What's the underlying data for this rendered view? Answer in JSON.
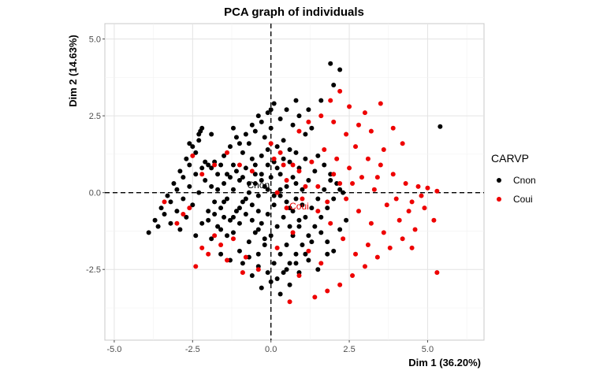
{
  "chart_data": {
    "type": "scatter",
    "title": "PCA graph of individuals",
    "xlabel": "Dim 1 (36.20%)",
    "ylabel": "Dim 2 (14.63%)",
    "xlim": [
      -5.3,
      6.8
    ],
    "ylim": [
      -4.8,
      5.5
    ],
    "x_ticks": [
      -5.0,
      -2.5,
      0.0,
      2.5,
      5.0
    ],
    "x_tick_labels": [
      "-5.0",
      "-2.5",
      "0.0",
      "2.5",
      "5.0"
    ],
    "y_ticks": [
      -2.5,
      0.0,
      2.5,
      5.0
    ],
    "y_tick_labels": [
      "-2.5",
      "0.0",
      "2.5",
      "5.0"
    ],
    "grid": true,
    "reference_lines": {
      "x": 0,
      "y": 0,
      "style": "dashed"
    },
    "legend": {
      "title": "CARVP",
      "position": "right"
    },
    "series": [
      {
        "name": "Cnon",
        "color": "#000000",
        "points": [
          [
            -3.9,
            -1.3
          ],
          [
            -3.7,
            -0.9
          ],
          [
            -3.5,
            -0.5
          ],
          [
            -3.3,
            -0.1
          ],
          [
            -3.1,
            0.3
          ],
          [
            -2.9,
            0.7
          ],
          [
            -2.7,
            1.1
          ],
          [
            -2.5,
            1.5
          ],
          [
            -2.3,
            1.9
          ],
          [
            -2.2,
            2.1
          ],
          [
            -3.6,
            -1.1
          ],
          [
            -3.4,
            -0.7
          ],
          [
            -3.2,
            -0.3
          ],
          [
            -3.0,
            0.1
          ],
          [
            -2.8,
            0.5
          ],
          [
            -2.6,
            0.9
          ],
          [
            -2.4,
            1.3
          ],
          [
            -2.3,
            1.7
          ],
          [
            -2.25,
            2.0
          ],
          [
            -2.6,
            1.6
          ],
          [
            -3.2,
            -1.0
          ],
          [
            -3.0,
            -0.6
          ],
          [
            -2.8,
            -0.2
          ],
          [
            -2.6,
            0.2
          ],
          [
            -2.4,
            0.6
          ],
          [
            -2.2,
            0.8
          ],
          [
            -2.0,
            0.9
          ],
          [
            -1.8,
            1.0
          ],
          [
            -1.6,
            0.9
          ],
          [
            -1.4,
            0.6
          ],
          [
            -2.9,
            -1.2
          ],
          [
            -2.7,
            -0.8
          ],
          [
            -2.5,
            -0.4
          ],
          [
            -2.3,
            0.0
          ],
          [
            -2.1,
            0.4
          ],
          [
            -1.9,
            0.2
          ],
          [
            -1.7,
            0.1
          ],
          [
            -1.5,
            0.3
          ],
          [
            -1.3,
            0.5
          ],
          [
            -1.1,
            0.7
          ],
          [
            -2.4,
            -1.4
          ],
          [
            -2.2,
            -1.0
          ],
          [
            -2.0,
            -0.6
          ],
          [
            -1.8,
            -0.3
          ],
          [
            -1.6,
            -0.5
          ],
          [
            -1.4,
            -0.2
          ],
          [
            -1.2,
            0.1
          ],
          [
            -1.0,
            0.4
          ],
          [
            -0.8,
            0.8
          ],
          [
            -0.6,
            1.1
          ],
          [
            -1.9,
            -1.5
          ],
          [
            -1.7,
            -1.1
          ],
          [
            -1.5,
            -0.8
          ],
          [
            -1.3,
            -0.9
          ],
          [
            -1.1,
            -0.6
          ],
          [
            -0.9,
            -0.3
          ],
          [
            -0.7,
            0.0
          ],
          [
            -0.5,
            0.3
          ],
          [
            -0.3,
            0.6
          ],
          [
            -0.1,
            0.9
          ],
          [
            -1.2,
            -1.3
          ],
          [
            -1.0,
            -1.0
          ],
          [
            -0.8,
            -0.7
          ],
          [
            -0.6,
            -0.4
          ],
          [
            -0.4,
            -0.1
          ],
          [
            -0.2,
            0.2
          ],
          [
            0.0,
            0.5
          ],
          [
            0.2,
            0.8
          ],
          [
            0.4,
            1.1
          ],
          [
            0.6,
            1.4
          ],
          [
            -0.7,
            -1.6
          ],
          [
            -0.5,
            -1.3
          ],
          [
            -0.3,
            -1.0
          ],
          [
            -0.1,
            -0.7
          ],
          [
            0.1,
            -0.4
          ],
          [
            0.3,
            -0.1
          ],
          [
            0.5,
            0.2
          ],
          [
            0.7,
            0.5
          ],
          [
            0.9,
            0.8
          ],
          [
            1.1,
            1.1
          ],
          [
            -0.4,
            -2.0
          ],
          [
            -0.2,
            -1.7
          ],
          [
            0.0,
            -1.4
          ],
          [
            0.2,
            -1.1
          ],
          [
            0.4,
            -0.8
          ],
          [
            0.6,
            -0.5
          ],
          [
            0.8,
            -0.2
          ],
          [
            1.0,
            0.1
          ],
          [
            1.2,
            0.4
          ],
          [
            1.4,
            0.7
          ],
          [
            0.1,
            -2.3
          ],
          [
            0.3,
            -2.0
          ],
          [
            0.5,
            -1.7
          ],
          [
            0.7,
            -1.4
          ],
          [
            0.9,
            -1.1
          ],
          [
            1.1,
            -0.8
          ],
          [
            1.3,
            -0.5
          ],
          [
            1.5,
            -0.2
          ],
          [
            1.7,
            0.1
          ],
          [
            1.9,
            0.4
          ],
          [
            0.4,
            -2.6
          ],
          [
            0.6,
            -2.3
          ],
          [
            0.8,
            -2.0
          ],
          [
            1.0,
            -1.7
          ],
          [
            1.2,
            -1.4
          ],
          [
            1.4,
            -1.1
          ],
          [
            1.6,
            -0.8
          ],
          [
            1.8,
            -0.5
          ],
          [
            2.0,
            -0.2
          ],
          [
            2.2,
            0.1
          ],
          [
            -0.5,
            2.0
          ],
          [
            -0.3,
            2.3
          ],
          [
            -0.1,
            2.6
          ],
          [
            0.1,
            2.9
          ],
          [
            0.3,
            2.4
          ],
          [
            0.5,
            2.7
          ],
          [
            0.7,
            2.2
          ],
          [
            0.9,
            2.5
          ],
          [
            1.1,
            1.9
          ],
          [
            1.3,
            2.1
          ],
          [
            -1.0,
            1.6
          ],
          [
            -0.8,
            1.9
          ],
          [
            -0.6,
            2.2
          ],
          [
            -0.4,
            2.5
          ],
          [
            -0.2,
            1.8
          ],
          [
            0.0,
            2.1
          ],
          [
            0.2,
            1.5
          ],
          [
            0.4,
            1.7
          ],
          [
            0.6,
            1.0
          ],
          [
            0.8,
            1.3
          ],
          [
            -1.5,
            1.2
          ],
          [
            -1.3,
            1.5
          ],
          [
            -1.1,
            1.8
          ],
          [
            -0.9,
            1.3
          ],
          [
            -0.7,
            1.6
          ],
          [
            -0.5,
            0.9
          ],
          [
            -0.3,
            1.2
          ],
          [
            -0.1,
            1.4
          ],
          [
            0.1,
            1.0
          ],
          [
            0.3,
            0.6
          ],
          [
            -0.9,
            -2.3
          ],
          [
            -0.6,
            -2.7
          ],
          [
            -0.3,
            -3.1
          ],
          [
            0.0,
            -2.9
          ],
          [
            0.3,
            -3.3
          ],
          [
            0.6,
            -3.0
          ],
          [
            0.9,
            -2.6
          ],
          [
            1.2,
            -2.2
          ],
          [
            1.5,
            -2.5
          ],
          [
            1.8,
            -2.0
          ],
          [
            -1.6,
            -2.0
          ],
          [
            -1.3,
            -2.2
          ],
          [
            -1.0,
            -1.9
          ],
          [
            -0.7,
            -2.1
          ],
          [
            -0.4,
            -2.4
          ],
          [
            -0.1,
            -2.6
          ],
          [
            0.2,
            -2.8
          ],
          [
            0.5,
            -2.5
          ],
          [
            0.8,
            -2.3
          ],
          [
            1.1,
            -2.0
          ],
          [
            1.5,
            1.2
          ],
          [
            1.7,
            0.9
          ],
          [
            1.9,
            0.6
          ],
          [
            2.1,
            0.3
          ],
          [
            2.3,
            0.0
          ],
          [
            1.6,
            -1.3
          ],
          [
            1.8,
            -1.6
          ],
          [
            2.0,
            -1.9
          ],
          [
            2.2,
            -1.2
          ],
          [
            2.4,
            -0.9
          ],
          [
            -2.0,
            -0.9
          ],
          [
            -1.8,
            -0.7
          ],
          [
            -1.6,
            -1.2
          ],
          [
            -1.4,
            -1.4
          ],
          [
            -1.2,
            -0.8
          ],
          [
            -1.0,
            -0.5
          ],
          [
            -0.8,
            -0.2
          ],
          [
            -0.6,
            -0.9
          ],
          [
            -0.4,
            -1.2
          ],
          [
            -0.2,
            -1.5
          ],
          [
            -0.9,
            0.5
          ],
          [
            -0.7,
            0.3
          ],
          [
            -0.5,
            0.6
          ],
          [
            -0.3,
            0.4
          ],
          [
            -0.1,
            0.1
          ],
          [
            0.1,
            -0.1
          ],
          [
            0.3,
            0.1
          ],
          [
            0.5,
            -0.3
          ],
          [
            0.7,
            -0.6
          ],
          [
            0.9,
            -0.9
          ],
          [
            1.9,
            4.2
          ],
          [
            2.2,
            4.0
          ],
          [
            2.0,
            3.5
          ],
          [
            1.6,
            3.0
          ],
          [
            1.2,
            2.7
          ],
          [
            5.4,
            2.15
          ],
          [
            0.0,
            2.7
          ],
          [
            0.8,
            3.0
          ],
          [
            -1.2,
            2.1
          ],
          [
            -1.9,
            1.9
          ],
          [
            -1.5,
            -0.3
          ],
          [
            -1.7,
            0.6
          ],
          [
            -1.9,
            0.8
          ],
          [
            -2.1,
            1.0
          ],
          [
            -1.2,
            0.9
          ],
          [
            -0.4,
            -0.6
          ],
          [
            0.6,
            -1.1
          ],
          [
            1.3,
            -1.6
          ],
          [
            1.0,
            -0.4
          ],
          [
            0.8,
            0.3
          ]
        ]
      },
      {
        "name": "Coui",
        "color": "#ee0000",
        "points": [
          [
            2.2,
            3.3
          ],
          [
            1.9,
            3.0
          ],
          [
            2.5,
            2.8
          ],
          [
            3.0,
            2.6
          ],
          [
            3.5,
            2.9
          ],
          [
            2.8,
            2.2
          ],
          [
            3.2,
            2.0
          ],
          [
            3.9,
            2.1
          ],
          [
            4.2,
            1.6
          ],
          [
            3.6,
            1.4
          ],
          [
            2.4,
            1.9
          ],
          [
            2.0,
            2.3
          ],
          [
            1.6,
            2.5
          ],
          [
            1.2,
            2.3
          ],
          [
            0.9,
            2.0
          ],
          [
            2.7,
            1.5
          ],
          [
            3.1,
            1.1
          ],
          [
            3.5,
            0.9
          ],
          [
            3.9,
            0.6
          ],
          [
            4.3,
            0.3
          ],
          [
            4.7,
            0.2
          ],
          [
            5.0,
            0.15
          ],
          [
            5.3,
            0.05
          ],
          [
            4.5,
            -0.3
          ],
          [
            4.9,
            -0.5
          ],
          [
            5.2,
            -0.9
          ],
          [
            4.6,
            -1.2
          ],
          [
            4.2,
            -1.5
          ],
          [
            3.8,
            -1.8
          ],
          [
            3.4,
            -2.1
          ],
          [
            3.0,
            -2.4
          ],
          [
            2.6,
            -2.7
          ],
          [
            2.2,
            -3.0
          ],
          [
            1.8,
            -3.2
          ],
          [
            1.4,
            -3.4
          ],
          [
            0.6,
            -3.55
          ],
          [
            5.3,
            -2.6
          ],
          [
            4.5,
            -1.8
          ],
          [
            4.1,
            -0.9
          ],
          [
            3.7,
            -0.4
          ],
          [
            3.3,
            0.1
          ],
          [
            2.9,
            0.5
          ],
          [
            2.5,
            0.8
          ],
          [
            2.1,
            1.1
          ],
          [
            1.7,
            1.4
          ],
          [
            1.3,
            1.0
          ],
          [
            0.9,
            0.7
          ],
          [
            0.5,
            0.4
          ],
          [
            0.2,
            0.0
          ],
          [
            0.5,
            -0.5
          ],
          [
            1.0,
            -0.2
          ],
          [
            1.5,
            0.2
          ],
          [
            2.0,
            0.6
          ],
          [
            2.4,
            -0.2
          ],
          [
            2.8,
            -0.6
          ],
          [
            3.2,
            -1.0
          ],
          [
            3.6,
            -1.3
          ],
          [
            4.0,
            -0.2
          ],
          [
            3.1,
            -1.7
          ],
          [
            2.7,
            -2.0
          ],
          [
            2.3,
            -1.5
          ],
          [
            1.9,
            -1.0
          ],
          [
            1.5,
            -0.6
          ],
          [
            1.1,
            0.2
          ],
          [
            0.7,
            0.9
          ],
          [
            0.3,
            1.3
          ],
          [
            0.0,
            1.6
          ],
          [
            2.6,
            0.3
          ],
          [
            3.4,
            0.5
          ],
          [
            4.4,
            -0.6
          ],
          [
            -2.4,
            -2.4
          ],
          [
            -2.0,
            -2.0
          ],
          [
            -1.6,
            -1.7
          ],
          [
            -1.2,
            -1.5
          ],
          [
            -0.8,
            -2.1
          ],
          [
            -0.4,
            -2.5
          ],
          [
            -0.9,
            -2.6
          ],
          [
            -1.4,
            -2.2
          ],
          [
            -2.2,
            -1.8
          ],
          [
            -1.8,
            -1.4
          ],
          [
            -2.6,
            -0.5
          ],
          [
            -2.8,
            -0.7
          ],
          [
            -3.0,
            -1.0
          ],
          [
            -3.4,
            -0.3
          ],
          [
            -2.2,
            0.6
          ],
          [
            -2.5,
            1.2
          ],
          [
            -1.8,
            0.9
          ],
          [
            -1.4,
            1.3
          ],
          [
            -1.0,
            0.9
          ],
          [
            -0.6,
            0.7
          ],
          [
            0.1,
            1.1
          ],
          [
            0.4,
            0.9
          ],
          [
            0.7,
            -1.3
          ],
          [
            1.2,
            -1.9
          ],
          [
            1.6,
            -2.3
          ],
          [
            0.9,
            -2.7
          ],
          [
            0.2,
            -1.8
          ],
          [
            1.8,
            -0.3
          ],
          [
            2.2,
            0.3
          ],
          [
            4.8,
            -0.1
          ]
        ]
      }
    ],
    "centroids": [
      {
        "label": "Cnon",
        "x": -0.4,
        "y": 0.25,
        "color": "#000000"
      },
      {
        "label": "Coui",
        "x": 0.9,
        "y": -0.45,
        "color": "#ee0000"
      }
    ]
  }
}
